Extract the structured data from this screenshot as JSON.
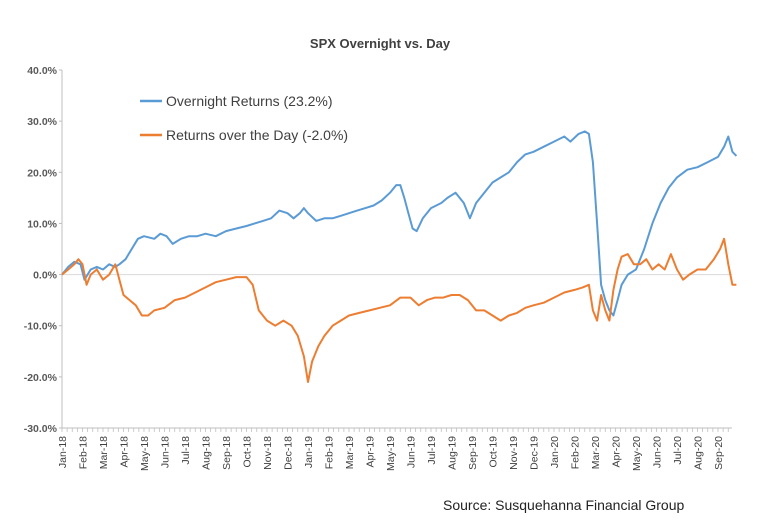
{
  "chart_data": {
    "type": "line",
    "title": "SPX Overnight vs. Day",
    "xlabel": "",
    "ylabel": "",
    "ylim": [
      -30,
      40
    ],
    "y_ticks": [
      "40.0%",
      "30.0%",
      "20.0%",
      "10.0%",
      "0.0%",
      "-10.0%",
      "-20.0%",
      "-30.0%"
    ],
    "x_ticks": [
      "Jan-18",
      "Feb-18",
      "Mar-18",
      "Apr-18",
      "May-18",
      "Jun-18",
      "Jul-18",
      "Aug-18",
      "Sep-18",
      "Oct-18",
      "Nov-18",
      "Dec-18",
      "Jan-19",
      "Feb-19",
      "Mar-19",
      "Apr-19",
      "May-19",
      "Jun-19",
      "Jul-19",
      "Aug-19",
      "Sep-19",
      "Oct-19",
      "Nov-19",
      "Dec-19",
      "Jan-20",
      "Feb-20",
      "Mar-20",
      "Apr-20",
      "May-20",
      "Jun-20",
      "Jul-20",
      "Aug-20",
      "Sep-20"
    ],
    "grid": false,
    "legend_position": "top-left",
    "source": "Source:  Susquehanna Financial Group",
    "series": [
      {
        "name": "Overnight Returns (23.2%)",
        "color": "#5b9bd5",
        "points": [
          [
            0,
            0
          ],
          [
            0.3,
            1.5
          ],
          [
            0.6,
            2.5
          ],
          [
            0.9,
            2
          ],
          [
            1.1,
            -1
          ],
          [
            1.4,
            1
          ],
          [
            1.7,
            1.5
          ],
          [
            2,
            1
          ],
          [
            2.3,
            2
          ],
          [
            2.6,
            1.5
          ],
          [
            2.8,
            2
          ],
          [
            3.1,
            3
          ],
          [
            3.4,
            5
          ],
          [
            3.7,
            7
          ],
          [
            4,
            7.5
          ],
          [
            4.5,
            7
          ],
          [
            4.8,
            8
          ],
          [
            5.1,
            7.5
          ],
          [
            5.4,
            6
          ],
          [
            5.8,
            7
          ],
          [
            6.2,
            7.5
          ],
          [
            6.6,
            7.5
          ],
          [
            7,
            8
          ],
          [
            7.5,
            7.5
          ],
          [
            8,
            8.5
          ],
          [
            8.5,
            9
          ],
          [
            9,
            9.5
          ],
          [
            9.4,
            10
          ],
          [
            9.8,
            10.5
          ],
          [
            10.2,
            11
          ],
          [
            10.6,
            12.5
          ],
          [
            11,
            12
          ],
          [
            11.3,
            11
          ],
          [
            11.6,
            12
          ],
          [
            11.8,
            13
          ],
          [
            12,
            12
          ],
          [
            12.4,
            10.5
          ],
          [
            12.8,
            11
          ],
          [
            13.2,
            11
          ],
          [
            13.6,
            11.5
          ],
          [
            14,
            12
          ],
          [
            14.4,
            12.5
          ],
          [
            14.8,
            13
          ],
          [
            15.2,
            13.5
          ],
          [
            15.6,
            14.5
          ],
          [
            16,
            16
          ],
          [
            16.3,
            17.5
          ],
          [
            16.5,
            17.5
          ],
          [
            16.7,
            15
          ],
          [
            16.9,
            12
          ],
          [
            17.1,
            9
          ],
          [
            17.3,
            8.5
          ],
          [
            17.6,
            11
          ],
          [
            18,
            13
          ],
          [
            18.5,
            14
          ],
          [
            18.8,
            15
          ],
          [
            19.2,
            16
          ],
          [
            19.6,
            14
          ],
          [
            19.9,
            11
          ],
          [
            20.2,
            14
          ],
          [
            20.6,
            16
          ],
          [
            21,
            18
          ],
          [
            21.4,
            19
          ],
          [
            21.8,
            20
          ],
          [
            22.2,
            22
          ],
          [
            22.6,
            23.5
          ],
          [
            23,
            24
          ],
          [
            23.5,
            25
          ],
          [
            24,
            26
          ],
          [
            24.5,
            27
          ],
          [
            24.8,
            26
          ],
          [
            25.2,
            27.5
          ],
          [
            25.5,
            28
          ],
          [
            25.7,
            27.5
          ],
          [
            25.9,
            22
          ],
          [
            26.1,
            10
          ],
          [
            26.3,
            -2
          ],
          [
            26.5,
            -5
          ],
          [
            26.7,
            -7
          ],
          [
            26.9,
            -8
          ],
          [
            27.1,
            -5
          ],
          [
            27.3,
            -2
          ],
          [
            27.6,
            0
          ],
          [
            28,
            1
          ],
          [
            28.4,
            5
          ],
          [
            28.8,
            10
          ],
          [
            29.2,
            14
          ],
          [
            29.6,
            17
          ],
          [
            30,
            19
          ],
          [
            30.5,
            20.5
          ],
          [
            31,
            21
          ],
          [
            31.5,
            22
          ],
          [
            32,
            23
          ],
          [
            32.3,
            25
          ],
          [
            32.5,
            27
          ],
          [
            32.7,
            24
          ],
          [
            32.9,
            23.2
          ]
        ]
      },
      {
        "name": "Returns over the Day (-2.0%)",
        "color": "#ed7d31",
        "points": [
          [
            0,
            0
          ],
          [
            0.3,
            1
          ],
          [
            0.6,
            2
          ],
          [
            0.8,
            3
          ],
          [
            1,
            2
          ],
          [
            1.2,
            -2
          ],
          [
            1.4,
            0
          ],
          [
            1.7,
            1
          ],
          [
            2,
            -1
          ],
          [
            2.3,
            0
          ],
          [
            2.6,
            2
          ],
          [
            2.8,
            -1
          ],
          [
            3,
            -4
          ],
          [
            3.3,
            -5
          ],
          [
            3.6,
            -6
          ],
          [
            3.9,
            -8
          ],
          [
            4.2,
            -8
          ],
          [
            4.5,
            -7
          ],
          [
            5,
            -6.5
          ],
          [
            5.5,
            -5
          ],
          [
            6,
            -4.5
          ],
          [
            6.5,
            -3.5
          ],
          [
            7,
            -2.5
          ],
          [
            7.5,
            -1.5
          ],
          [
            8,
            -1
          ],
          [
            8.5,
            -0.5
          ],
          [
            9,
            -0.5
          ],
          [
            9.3,
            -2
          ],
          [
            9.6,
            -7
          ],
          [
            10,
            -9
          ],
          [
            10.4,
            -10
          ],
          [
            10.8,
            -9
          ],
          [
            11.2,
            -10
          ],
          [
            11.5,
            -12
          ],
          [
            11.8,
            -16
          ],
          [
            12,
            -21
          ],
          [
            12.2,
            -17
          ],
          [
            12.5,
            -14
          ],
          [
            12.8,
            -12
          ],
          [
            13.2,
            -10
          ],
          [
            13.6,
            -9
          ],
          [
            14,
            -8
          ],
          [
            14.5,
            -7.5
          ],
          [
            15,
            -7
          ],
          [
            15.5,
            -6.5
          ],
          [
            16,
            -6
          ],
          [
            16.5,
            -4.5
          ],
          [
            17,
            -4.5
          ],
          [
            17.4,
            -6
          ],
          [
            17.8,
            -5
          ],
          [
            18.2,
            -4.5
          ],
          [
            18.6,
            -4.5
          ],
          [
            19,
            -4
          ],
          [
            19.4,
            -4
          ],
          [
            19.8,
            -5
          ],
          [
            20.2,
            -7
          ],
          [
            20.6,
            -7
          ],
          [
            21,
            -8
          ],
          [
            21.4,
            -9
          ],
          [
            21.8,
            -8
          ],
          [
            22.2,
            -7.5
          ],
          [
            22.6,
            -6.5
          ],
          [
            23,
            -6
          ],
          [
            23.5,
            -5.5
          ],
          [
            24,
            -4.5
          ],
          [
            24.5,
            -3.5
          ],
          [
            25,
            -3
          ],
          [
            25.4,
            -2.5
          ],
          [
            25.7,
            -2
          ],
          [
            25.9,
            -7
          ],
          [
            26.1,
            -9
          ],
          [
            26.3,
            -4
          ],
          [
            26.5,
            -7
          ],
          [
            26.7,
            -9
          ],
          [
            26.9,
            -3
          ],
          [
            27.1,
            1
          ],
          [
            27.3,
            3.5
          ],
          [
            27.6,
            4
          ],
          [
            27.9,
            2
          ],
          [
            28.2,
            2
          ],
          [
            28.5,
            3
          ],
          [
            28.8,
            1
          ],
          [
            29.1,
            2
          ],
          [
            29.4,
            1
          ],
          [
            29.7,
            4
          ],
          [
            30,
            1
          ],
          [
            30.3,
            -1
          ],
          [
            30.6,
            0
          ],
          [
            31,
            1
          ],
          [
            31.4,
            1
          ],
          [
            31.8,
            3
          ],
          [
            32.1,
            5
          ],
          [
            32.3,
            7
          ],
          [
            32.5,
            2
          ],
          [
            32.7,
            -2
          ],
          [
            32.9,
            -2.0
          ]
        ]
      }
    ]
  }
}
